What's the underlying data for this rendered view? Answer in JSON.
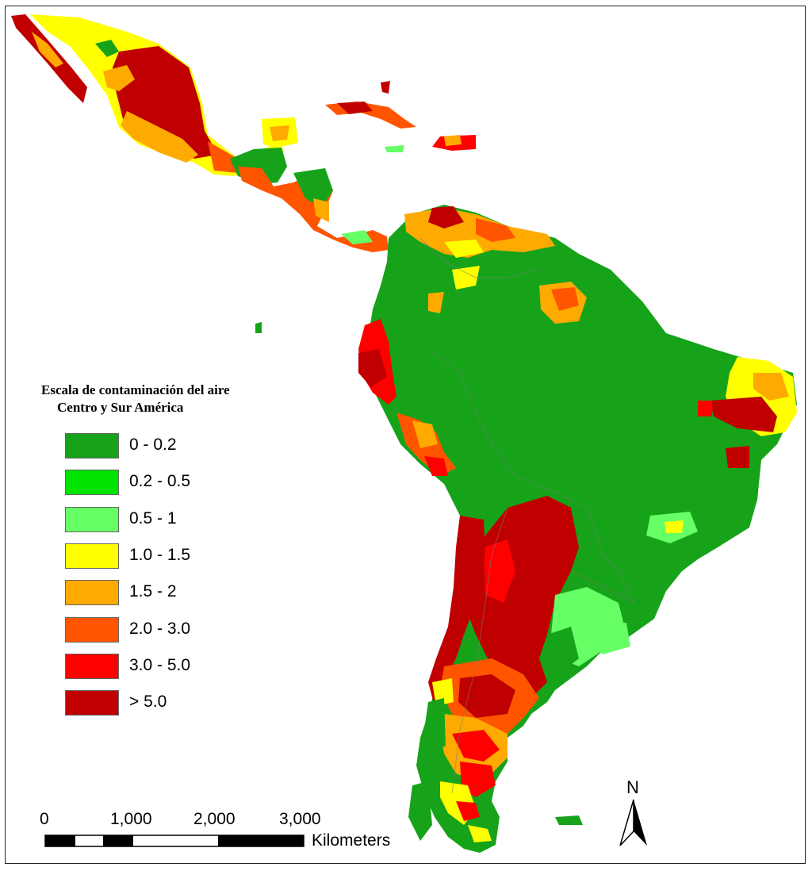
{
  "legend": {
    "title_line1": "Escala de contaminación del aire",
    "title_line2": "Centro y Sur América",
    "classes": [
      {
        "label": "0 - 0.2",
        "color": "#16a31a"
      },
      {
        "label": "0.2 - 0.5",
        "color": "#00e400"
      },
      {
        "label": "0.5 - 1",
        "color": "#66ff66"
      },
      {
        "label": "1.0 - 1.5",
        "color": "#ffff00"
      },
      {
        "label": "1.5 - 2",
        "color": "#ffaa00"
      },
      {
        "label": "2.0 - 3.0",
        "color": "#ff5500"
      },
      {
        "label": "3.0 - 5.0",
        "color": "#ff0000"
      },
      {
        "label": "> 5.0",
        "color": "#c00000"
      }
    ]
  },
  "scale_bar": {
    "ticks": [
      "0",
      "1,000",
      "2,000",
      "3,000"
    ],
    "unit": "Kilometers"
  },
  "north_arrow": {
    "letter": "N"
  }
}
